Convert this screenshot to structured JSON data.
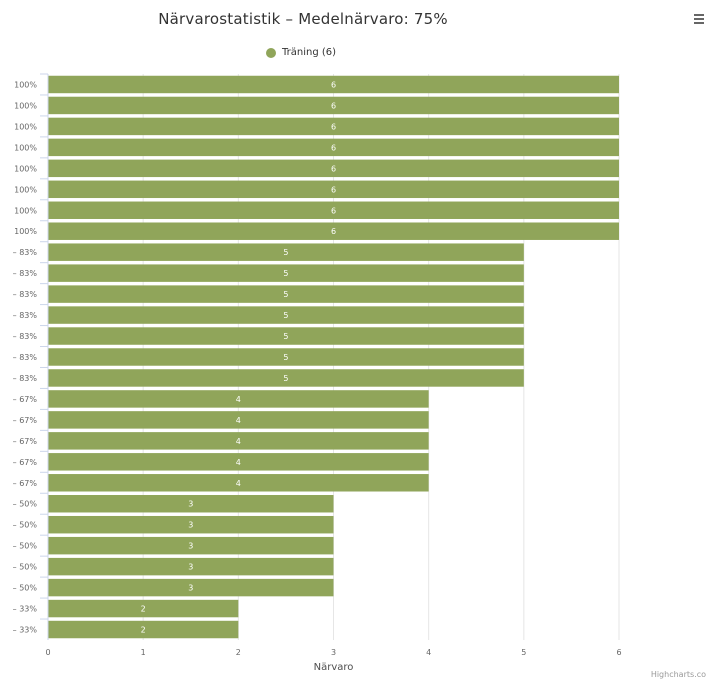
{
  "title": "Närvarostatistik – Medelnärvaro: 75%",
  "legend": {
    "label": "Träning (6)"
  },
  "credits": "Highcharts.co",
  "colors": {
    "series": "#90a55a",
    "grid": "#e6e6e6",
    "axis": "#ccd6eb",
    "text": "#333333"
  },
  "menu": {
    "icon": "hamburger-menu-icon"
  },
  "chart_data": {
    "type": "bar",
    "orientation": "horizontal",
    "title": "Närvarostatistik – Medelnärvaro: 75%",
    "xlabel": "Närvaro",
    "ylabel": "",
    "xlim": [
      0,
      6
    ],
    "xticks": [
      0,
      1,
      2,
      3,
      4,
      5,
      6
    ],
    "grid": true,
    "legend_position": "top-center",
    "categories": [
      "100%",
      "100%",
      "100%",
      "100%",
      "100%",
      "100%",
      "100%",
      "100%",
      "– 83%",
      "– 83%",
      "– 83%",
      "– 83%",
      "– 83%",
      "– 83%",
      "– 83%",
      "– 67%",
      "– 67%",
      "– 67%",
      "– 67%",
      "– 67%",
      "– 50%",
      "– 50%",
      "– 50%",
      "– 50%",
      "– 50%",
      "– 33%",
      "– 33%"
    ],
    "series": [
      {
        "name": "Träning (6)",
        "values": [
          6,
          6,
          6,
          6,
          6,
          6,
          6,
          6,
          5,
          5,
          5,
          5,
          5,
          5,
          5,
          4,
          4,
          4,
          4,
          4,
          3,
          3,
          3,
          3,
          3,
          2,
          2
        ]
      }
    ]
  }
}
